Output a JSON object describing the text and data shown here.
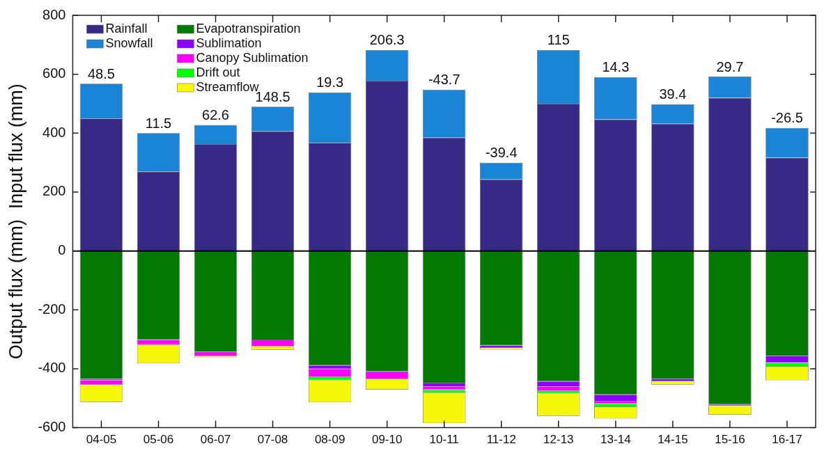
{
  "chart_data": {
    "type": "bar",
    "stacked": true,
    "ylabel": "Output flux (mm)  Input flux (mm)",
    "categories": [
      "04-05",
      "05-06",
      "06-07",
      "07-08",
      "08-09",
      "09-10",
      "10-11",
      "11-12",
      "12-13",
      "13-14",
      "14-15",
      "15-16",
      "16-17"
    ],
    "series": [
      {
        "name": "Rainfall",
        "color": "#372a87",
        "values": [
          450,
          270,
          363,
          407,
          367,
          578,
          385,
          243,
          500,
          447,
          432,
          520,
          317
        ]
      },
      {
        "name": "Snowfall",
        "color": "#1a85d6",
        "values": [
          118,
          130,
          65,
          83,
          171,
          104,
          163,
          57,
          182,
          143,
          66,
          72,
          101
        ]
      },
      {
        "name": "Evapotranspiration",
        "color": "#027a02",
        "values": [
          -435,
          -302,
          -343,
          -303,
          -389,
          -409,
          -450,
          -321,
          -443,
          -488,
          -435,
          -521,
          -357
        ]
      },
      {
        "name": "Sublimation",
        "color": "#8b00ff",
        "values": [
          -4,
          null,
          null,
          null,
          -12,
          -3,
          -11,
          -9,
          -18,
          -23,
          -8,
          -5,
          -23
        ]
      },
      {
        "name": "Canopy Sublimation",
        "color": "#ff00ff",
        "values": [
          -16,
          -17,
          -14,
          -21,
          -27,
          -23,
          -11,
          null,
          -14,
          -8,
          null,
          null,
          null
        ]
      },
      {
        "name": "Drift out",
        "color": "#00ff00",
        "values": [
          null,
          null,
          null,
          null,
          -11,
          null,
          -10,
          null,
          -9,
          -11,
          null,
          null,
          -13
        ]
      },
      {
        "name": "Streamflow",
        "color": "#f7f70a",
        "values": [
          -58,
          -63,
          -4,
          -12,
          -75,
          -36,
          -103,
          -5,
          -76,
          -39,
          -11,
          -30,
          -46
        ]
      }
    ],
    "ylim": [
      -600,
      800
    ],
    "yticks": [
      -600,
      -400,
      -200,
      0,
      200,
      400,
      600,
      800
    ],
    "ref_lines": [
      {
        "axis": "y",
        "value": 0,
        "color": "#000000"
      }
    ],
    "annotations": [
      {
        "text": "48.5",
        "x": "04-05",
        "y": 568
      },
      {
        "text": "11.5",
        "x": "05-06",
        "y": 400
      },
      {
        "text": "62.6",
        "x": "06-07",
        "y": 428
      },
      {
        "text": "148.5",
        "x": "07-08",
        "y": 490
      },
      {
        "text": "19.3",
        "x": "08-09",
        "y": 538
      },
      {
        "text": "206.3",
        "x": "09-10",
        "y": 682
      },
      {
        "text": "-43.7",
        "x": "10-11",
        "y": 548
      },
      {
        "text": "-39.4",
        "x": "11-12",
        "y": 300
      },
      {
        "text": "115",
        "x": "12-13",
        "y": 682
      },
      {
        "text": "14.3",
        "x": "13-14",
        "y": 590
      },
      {
        "text": "39.4",
        "x": "14-15",
        "y": 498
      },
      {
        "text": "29.7",
        "x": "15-16",
        "y": 592
      },
      {
        "text": "-26.5",
        "x": "16-17",
        "y": 418
      }
    ],
    "grid": false,
    "legend": "top left"
  }
}
